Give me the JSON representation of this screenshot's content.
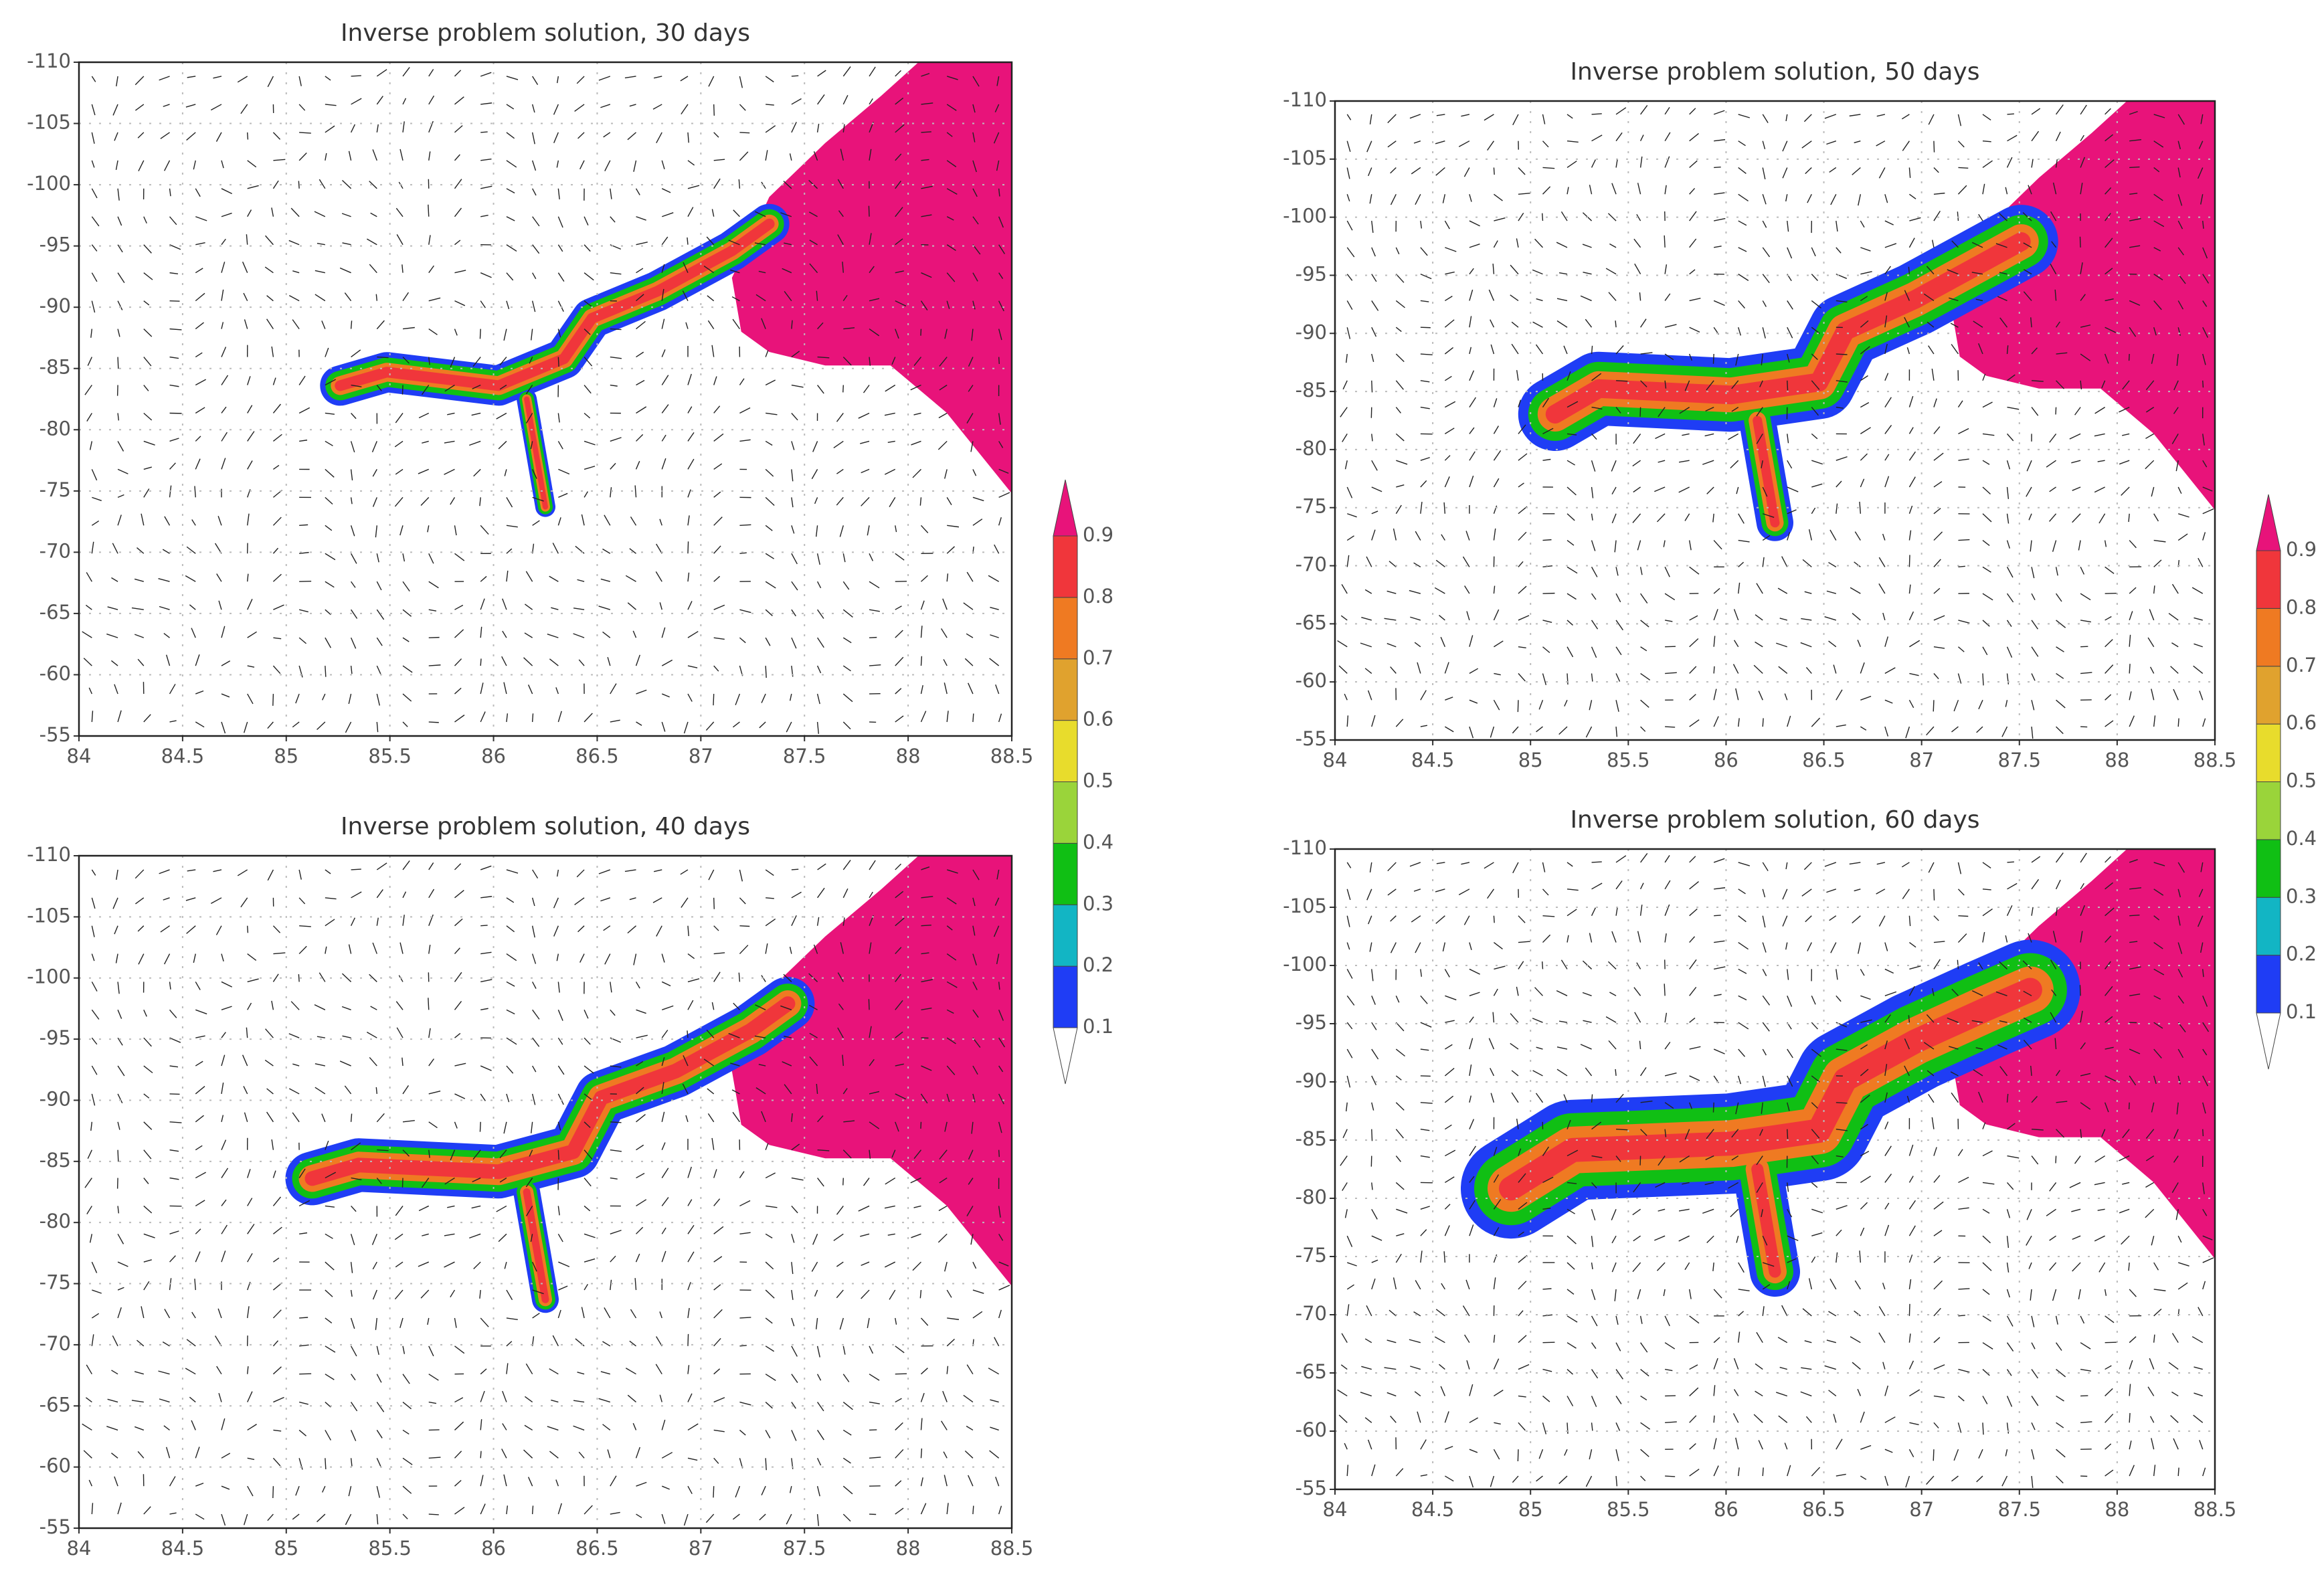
{
  "chart_data": [
    {
      "type": "contour",
      "title": "Inverse problem solution, 30 days",
      "xlim": [
        84,
        88.5
      ],
      "xticks": [
        84,
        84.5,
        85,
        85.5,
        86,
        86.5,
        87,
        87.5,
        88,
        88.5
      ],
      "ylim": [
        -55,
        -110
      ],
      "yticks": [
        -110,
        -105,
        -100,
        -95,
        -90,
        -85,
        -80,
        -75,
        -70,
        -65,
        -60,
        -55
      ],
      "grid": true,
      "colorbar": {
        "levels": [
          0.1,
          0.2,
          0.3,
          0.4,
          0.5,
          0.6,
          0.7,
          0.8,
          0.9
        ],
        "colors": [
          "#1f3df5",
          "#12b5c4",
          "#10bf14",
          "#9ad43a",
          "#e8dc2c",
          "#e0a22e",
          "#ef7a22",
          "#f0363b",
          "#e8137a"
        ]
      }
    },
    {
      "type": "contour",
      "title": "Inverse problem solution, 40 days",
      "xlim": [
        84,
        88.5
      ],
      "xticks": [
        84,
        84.5,
        85,
        85.5,
        86,
        86.5,
        87,
        87.5,
        88,
        88.5
      ],
      "ylim": [
        -55,
        -110
      ],
      "yticks": [
        -110,
        -105,
        -100,
        -95,
        -90,
        -85,
        -80,
        -75,
        -70,
        -65,
        -60,
        -55
      ],
      "grid": true
    },
    {
      "type": "contour",
      "title": "Inverse problem solution, 50 days",
      "xlim": [
        84,
        88.5
      ],
      "xticks": [
        84,
        84.5,
        85,
        85.5,
        86,
        86.5,
        87,
        87.5,
        88,
        88.5
      ],
      "ylim": [
        -55,
        -110
      ],
      "yticks": [
        -110,
        -105,
        -100,
        -95,
        -90,
        -85,
        -80,
        -75,
        -70,
        -65,
        -60,
        -55
      ],
      "grid": true,
      "colorbar": {
        "levels": [
          0.1,
          0.2,
          0.3,
          0.4,
          0.5,
          0.6,
          0.7,
          0.8,
          0.9
        ],
        "colors": [
          "#1f3df5",
          "#12b5c4",
          "#10bf14",
          "#9ad43a",
          "#e8dc2c",
          "#e0a22e",
          "#ef7a22",
          "#f0363b",
          "#e8137a"
        ]
      }
    },
    {
      "type": "contour",
      "title": "Inverse problem solution, 60 days",
      "xlim": [
        84,
        88.5
      ],
      "xticks": [
        84,
        84.5,
        85,
        85.5,
        86,
        86.5,
        87,
        87.5,
        88,
        88.5
      ],
      "ylim": [
        -55,
        -110
      ],
      "yticks": [
        -110,
        -105,
        -100,
        -95,
        -90,
        -85,
        -80,
        -75,
        -70,
        -65,
        -60,
        -55
      ],
      "grid": true
    }
  ]
}
